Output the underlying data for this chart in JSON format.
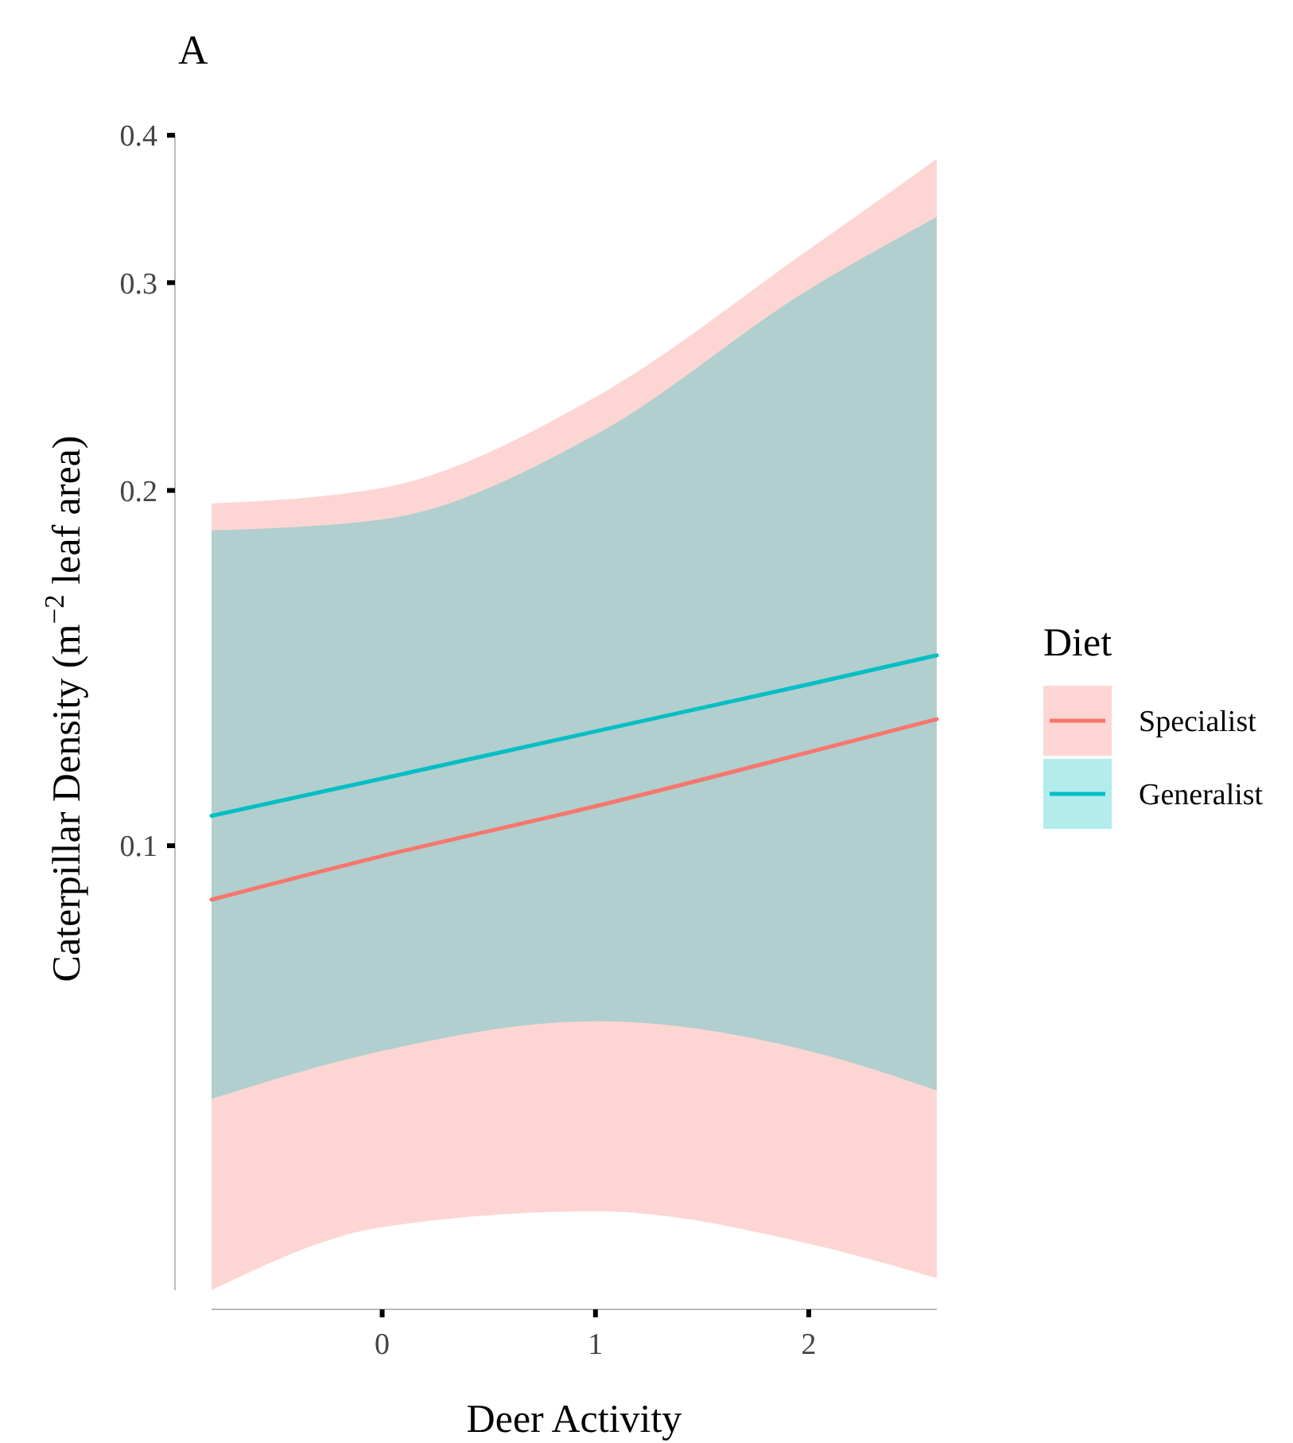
{
  "chart_data": {
    "type": "line",
    "title": "A",
    "xlabel": "Deer Activity",
    "ylabel": "Caterpillar Density (m$^{−2}$ leaf area)",
    "legend_title": "Diet",
    "log": "y",
    "grid": false,
    "legend": "right",
    "xlim": [
      -0.8,
      2.6
    ],
    "xticks": [
      0,
      1,
      2
    ],
    "ylim": [
      0.042,
      0.4
    ],
    "yticks": [
      0.1,
      0.2,
      0.3,
      0.4
    ],
    "series": [
      {
        "name": "Specialist",
        "color": "#f8766d",
        "x": [
          -0.8,
          0,
          1,
          2,
          2.6
        ],
        "values": [
          0.09,
          0.098,
          0.108,
          0.12,
          0.128
        ],
        "lower": [
          0.042,
          0.0475,
          0.049,
          0.046,
          0.043
        ],
        "upper": [
          0.195,
          0.201,
          0.24,
          0.32,
          0.382
        ]
      },
      {
        "name": "Generalist",
        "color": "#00bfc4",
        "x": [
          -0.8,
          0,
          1,
          2,
          2.6
        ],
        "values": [
          0.106,
          0.114,
          0.125,
          0.137,
          0.145
        ],
        "lower": [
          0.061,
          0.067,
          0.071,
          0.067,
          0.062
        ],
        "upper": [
          0.185,
          0.189,
          0.223,
          0.296,
          0.341
        ]
      }
    ]
  }
}
